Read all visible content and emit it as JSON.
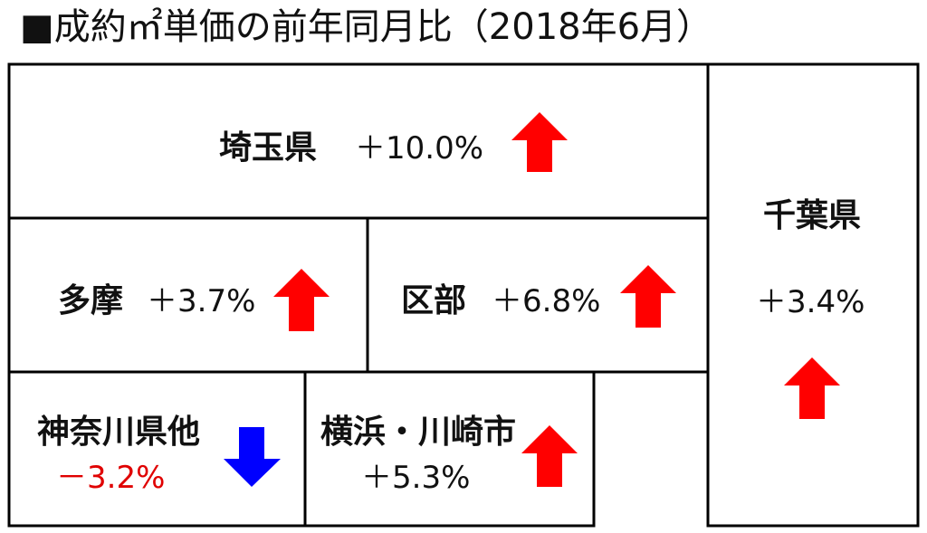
{
  "title": "■成約㎡単価の前年同月比（2018年6月）",
  "regions": [
    {
      "key": "saitama",
      "name": "埼玉県",
      "change": "＋10.0%",
      "direction": "up"
    },
    {
      "key": "chiba",
      "name": "千葉県",
      "change": "＋3.4%",
      "direction": "up"
    },
    {
      "key": "tama",
      "name": "多摩",
      "change": "＋3.7%",
      "direction": "up"
    },
    {
      "key": "kubu",
      "name": "区部",
      "change": "＋6.8%",
      "direction": "up"
    },
    {
      "key": "kanagawa",
      "name": "神奈川県他",
      "change": "－3.2%",
      "direction": "down"
    },
    {
      "key": "yokohama",
      "name": "横浜・川崎市",
      "change": "＋5.3%",
      "direction": "up"
    }
  ],
  "colors": {
    "up": "#ff0000",
    "down": "#0000ff",
    "negative_text": "#e00000",
    "border": "#000000"
  }
}
